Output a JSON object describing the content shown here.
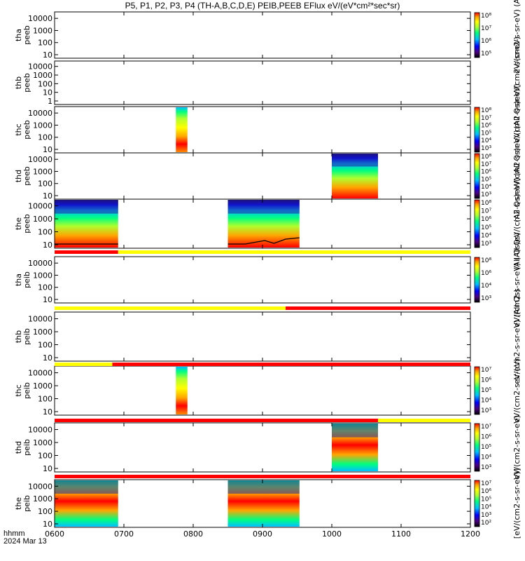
{
  "title": "P5, P1, P2, P3, P4 (TH-A,B,C,D,E) PEIB,PEEB EFlux eV/(eV*cm²*sec*sr)",
  "footer": {
    "label": "hhmm",
    "date": "2024 Mar 13"
  },
  "colors": {
    "spectrum": [
      "#000000",
      "#4b0082",
      "#0000ff",
      "#00bfff",
      "#00ff7f",
      "#adff2f",
      "#ffff00",
      "#ffa500",
      "#ff0000"
    ],
    "bar_red": "#ff0000",
    "bar_yellow": "#ffff00",
    "trace": "#000000"
  },
  "chart_data": {
    "type": "heatmap",
    "x_ticks": [
      "0600",
      "0700",
      "0800",
      "0900",
      "1000",
      "1100",
      "1200"
    ],
    "x_range": [
      "0600",
      "1200"
    ],
    "y_scale": "log",
    "y_ticks": [
      "10",
      "100",
      "1000",
      "10000"
    ],
    "panels": [
      {
        "ylabel": [
          "tha",
          "peeb"
        ],
        "y_ticks": [
          "10",
          "100",
          "1000",
          "10000"
        ],
        "colorbar": {
          "ticks": [
            "10⁸",
            "10⁷",
            "10⁶",
            "10⁵"
          ],
          "label": "eV/(cm2-s-sr-eV) (Al"
        },
        "data": []
      },
      {
        "ylabel": [
          "thb",
          "peeb"
        ],
        "y_ticks": [
          "1",
          "10",
          "100",
          "1000",
          "10000"
        ],
        "colorbar": null,
        "side_label": "(All Qs)eV/(cm2-s-sr-eV)",
        "data": []
      },
      {
        "ylabel": [
          "thc",
          "peeb"
        ],
        "y_ticks": [
          "10",
          "100",
          "1000",
          "10000"
        ],
        "colorbar": {
          "ticks": [
            "10⁸",
            "10⁷",
            "10⁶",
            "10⁵",
            "10⁴",
            "10³"
          ],
          "label": "(All Qs)eV/(cm2-s-sr-eV)"
        },
        "data": [
          {
            "x0": 745,
            "x1": 755
          }
        ]
      },
      {
        "ylabel": [
          "thd",
          "peeb"
        ],
        "y_ticks": [
          "10",
          "100",
          "1000",
          "10000"
        ],
        "colorbar": {
          "ticks": [
            "10⁸",
            "10⁷",
            "10⁶",
            "10⁵",
            "10⁴",
            "10³"
          ],
          "label": "(All Qs)eV/(cm2-s-sr-eV)"
        },
        "data": [
          {
            "x0": 1000,
            "x1": 1040
          }
        ]
      },
      {
        "ylabel": [
          "the",
          "peeb"
        ],
        "y_ticks": [
          "10",
          "100",
          "1000",
          "10000"
        ],
        "colorbar": {
          "ticks": [
            "10⁸",
            "10⁷",
            "10⁶",
            "10⁵",
            "10⁴",
            "10³"
          ],
          "label": "(All Qs)eV/(cm2-s-sr-eV)"
        },
        "data": [
          {
            "x0": 600,
            "x1": 655
          },
          {
            "x0": 790,
            "x1": 932
          }
        ]
      },
      {
        "ylabel": [
          "tha",
          "peib"
        ],
        "y_ticks": [
          "10",
          "100",
          "1000",
          "10000"
        ],
        "colorbar": {
          "ticks": [
            "10⁸",
            "10⁶",
            "10⁴",
            "10³"
          ],
          "label": "eV/(cm2-s-sr-eV) (All Qs)"
        },
        "data": []
      },
      {
        "ylabel": [
          "thb",
          "peib"
        ],
        "y_ticks": [
          "10",
          "100",
          "1000",
          "10000"
        ],
        "colorbar": null,
        "side_label": "eV/(cm2-s-sr-eV) (All Qs)",
        "data": []
      },
      {
        "ylabel": [
          "thc",
          "peib"
        ],
        "y_ticks": [
          "10",
          "100",
          "1000",
          "10000"
        ],
        "colorbar": {
          "ticks": [
            "10⁷",
            "10⁶",
            "10⁵",
            "10⁴",
            "10³"
          ],
          "label": "eV/(cm2-s-sr-eV)"
        },
        "data": [
          {
            "x0": 745,
            "x1": 755
          }
        ]
      },
      {
        "ylabel": [
          "thd",
          "peib"
        ],
        "y_ticks": [
          "10",
          "100",
          "1000",
          "10000"
        ],
        "colorbar": {
          "ticks": [
            "10⁷",
            "10⁶",
            "10⁵",
            "10⁴",
            "10³"
          ],
          "label": "eV/(cm2-s-sr-eV)"
        },
        "data": [
          {
            "x0": 1000,
            "x1": 1040
          }
        ]
      },
      {
        "ylabel": [
          "the",
          "peib"
        ],
        "y_ticks": [
          "10",
          "100",
          "1000",
          "10000"
        ],
        "colorbar": {
          "ticks": [
            "10⁷",
            "10⁶",
            "10⁵",
            "10⁴",
            "10³",
            "10²"
          ],
          "label": "[eV/(cm2-s-sr-eV)]"
        },
        "data": [
          {
            "x0": 600,
            "x1": 655
          },
          {
            "x0": 790,
            "x1": 932
          }
        ]
      }
    ],
    "mode_bars": [
      {
        "after_panel": 4,
        "segments": [
          {
            "x0": 600,
            "x1": 655,
            "color": "red"
          },
          {
            "x0": 655,
            "x1": 1200,
            "color": "yellow"
          }
        ]
      },
      {
        "after_panel": 5,
        "segments": [
          {
            "x0": 600,
            "x1": 920,
            "color": "yellow"
          },
          {
            "x0": 920,
            "x1": 1200,
            "color": "red"
          }
        ]
      },
      {
        "after_panel": 6,
        "segments": [
          {
            "x0": 600,
            "x1": 650,
            "color": "yellow"
          },
          {
            "x0": 650,
            "x1": 1200,
            "color": "red"
          }
        ]
      },
      {
        "after_panel": 7,
        "segments": [
          {
            "x0": 600,
            "x1": 1040,
            "color": "red"
          },
          {
            "x0": 1040,
            "x1": 1200,
            "color": "yellow"
          }
        ]
      },
      {
        "after_panel": 8,
        "segments": [
          {
            "x0": 600,
            "x1": 1200,
            "color": "red"
          }
        ]
      }
    ]
  }
}
